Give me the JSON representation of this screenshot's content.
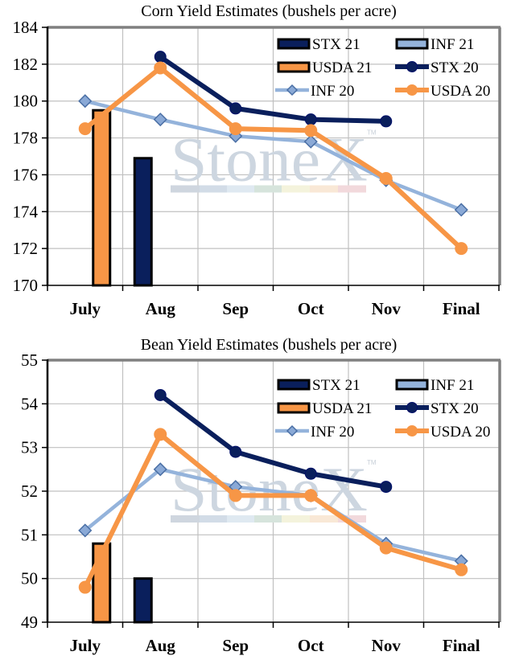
{
  "watermark": {
    "text": "StoneX",
    "tm": "TM",
    "bar_colors": [
      "#cfd6df",
      "#d2dce7",
      "#dfe9f1",
      "#d6e4dc",
      "#f4f3dc",
      "#f9e8d6",
      "#f2d9dc"
    ]
  },
  "colors": {
    "stx": "#0a1f5c",
    "inf": "#94b3db",
    "inf_marker_fill": "#8aa9d6",
    "inf_marker_stroke": "#4a6fa5",
    "usda": "#f79646",
    "grid": "#c0c0c0",
    "plot_border": "#808080"
  },
  "chart_data": [
    {
      "type": "bar+line",
      "title": "Corn Yield Estimates (bushels per acre)",
      "xlabel": "",
      "ylabel": "",
      "categories": [
        "July",
        "Aug",
        "Sep",
        "Oct",
        "Nov",
        "Final"
      ],
      "ylim": [
        170,
        184
      ],
      "yticks": [
        "184",
        "182",
        "180",
        "178",
        "176",
        "174",
        "172",
        "170"
      ],
      "ytick_values": [
        184,
        182,
        180,
        178,
        176,
        174,
        172,
        170
      ],
      "grid": true,
      "legend_position": "top-right",
      "bar_series": [
        {
          "name": "STX 21",
          "color_key": "stx",
          "values": [
            null,
            176.9,
            null,
            null,
            null,
            null
          ]
        },
        {
          "name": "INF 21",
          "color_key": "inf",
          "values": [
            null,
            null,
            null,
            null,
            null,
            null
          ]
        },
        {
          "name": "USDA 21",
          "color_key": "usda",
          "values": [
            179.5,
            null,
            null,
            null,
            null,
            null
          ]
        }
      ],
      "line_series": [
        {
          "name": "STX 20",
          "color_key": "stx",
          "marker": "circle",
          "values": [
            null,
            182.4,
            179.6,
            179.0,
            178.9,
            null
          ]
        },
        {
          "name": "INF 20",
          "color_key": "inf",
          "marker": "diamond",
          "values": [
            180.0,
            179.0,
            178.1,
            177.8,
            175.7,
            174.1
          ]
        },
        {
          "name": "USDA 20",
          "color_key": "usda",
          "marker": "circle",
          "values": [
            178.5,
            181.8,
            178.5,
            178.4,
            175.8,
            172.0
          ]
        }
      ],
      "legend": [
        "STX 21",
        "INF 21",
        "USDA 21",
        "STX 20",
        "INF 20",
        "USDA 20"
      ]
    },
    {
      "type": "bar+line",
      "title": "Bean Yield Estimates (bushels per acre)",
      "xlabel": "",
      "ylabel": "",
      "categories": [
        "July",
        "Aug",
        "Sep",
        "Oct",
        "Nov",
        "Final"
      ],
      "ylim": [
        49,
        55
      ],
      "yticks": [
        "55",
        "54",
        "53",
        "52",
        "51",
        "50",
        "49"
      ],
      "ytick_values": [
        55,
        54,
        53,
        52,
        51,
        50,
        49
      ],
      "grid": true,
      "legend_position": "top-right",
      "bar_series": [
        {
          "name": "STX 21",
          "color_key": "stx",
          "values": [
            null,
            50.0,
            null,
            null,
            null,
            null
          ]
        },
        {
          "name": "INF 21",
          "color_key": "inf",
          "values": [
            null,
            null,
            null,
            null,
            null,
            null
          ]
        },
        {
          "name": "USDA 21",
          "color_key": "usda",
          "values": [
            50.8,
            null,
            null,
            null,
            null,
            null
          ]
        }
      ],
      "line_series": [
        {
          "name": "STX 20",
          "color_key": "stx",
          "marker": "circle",
          "values": [
            null,
            54.2,
            52.9,
            52.4,
            52.1,
            null
          ]
        },
        {
          "name": "INF 20",
          "color_key": "inf",
          "marker": "diamond",
          "values": [
            51.1,
            52.5,
            52.1,
            51.9,
            50.8,
            50.4
          ]
        },
        {
          "name": "USDA 20",
          "color_key": "usda",
          "marker": "circle",
          "values": [
            49.8,
            53.3,
            51.9,
            51.9,
            50.7,
            50.2
          ]
        }
      ],
      "legend": [
        "STX 21",
        "INF 21",
        "USDA 21",
        "STX 20",
        "INF 20",
        "USDA 20"
      ]
    }
  ]
}
